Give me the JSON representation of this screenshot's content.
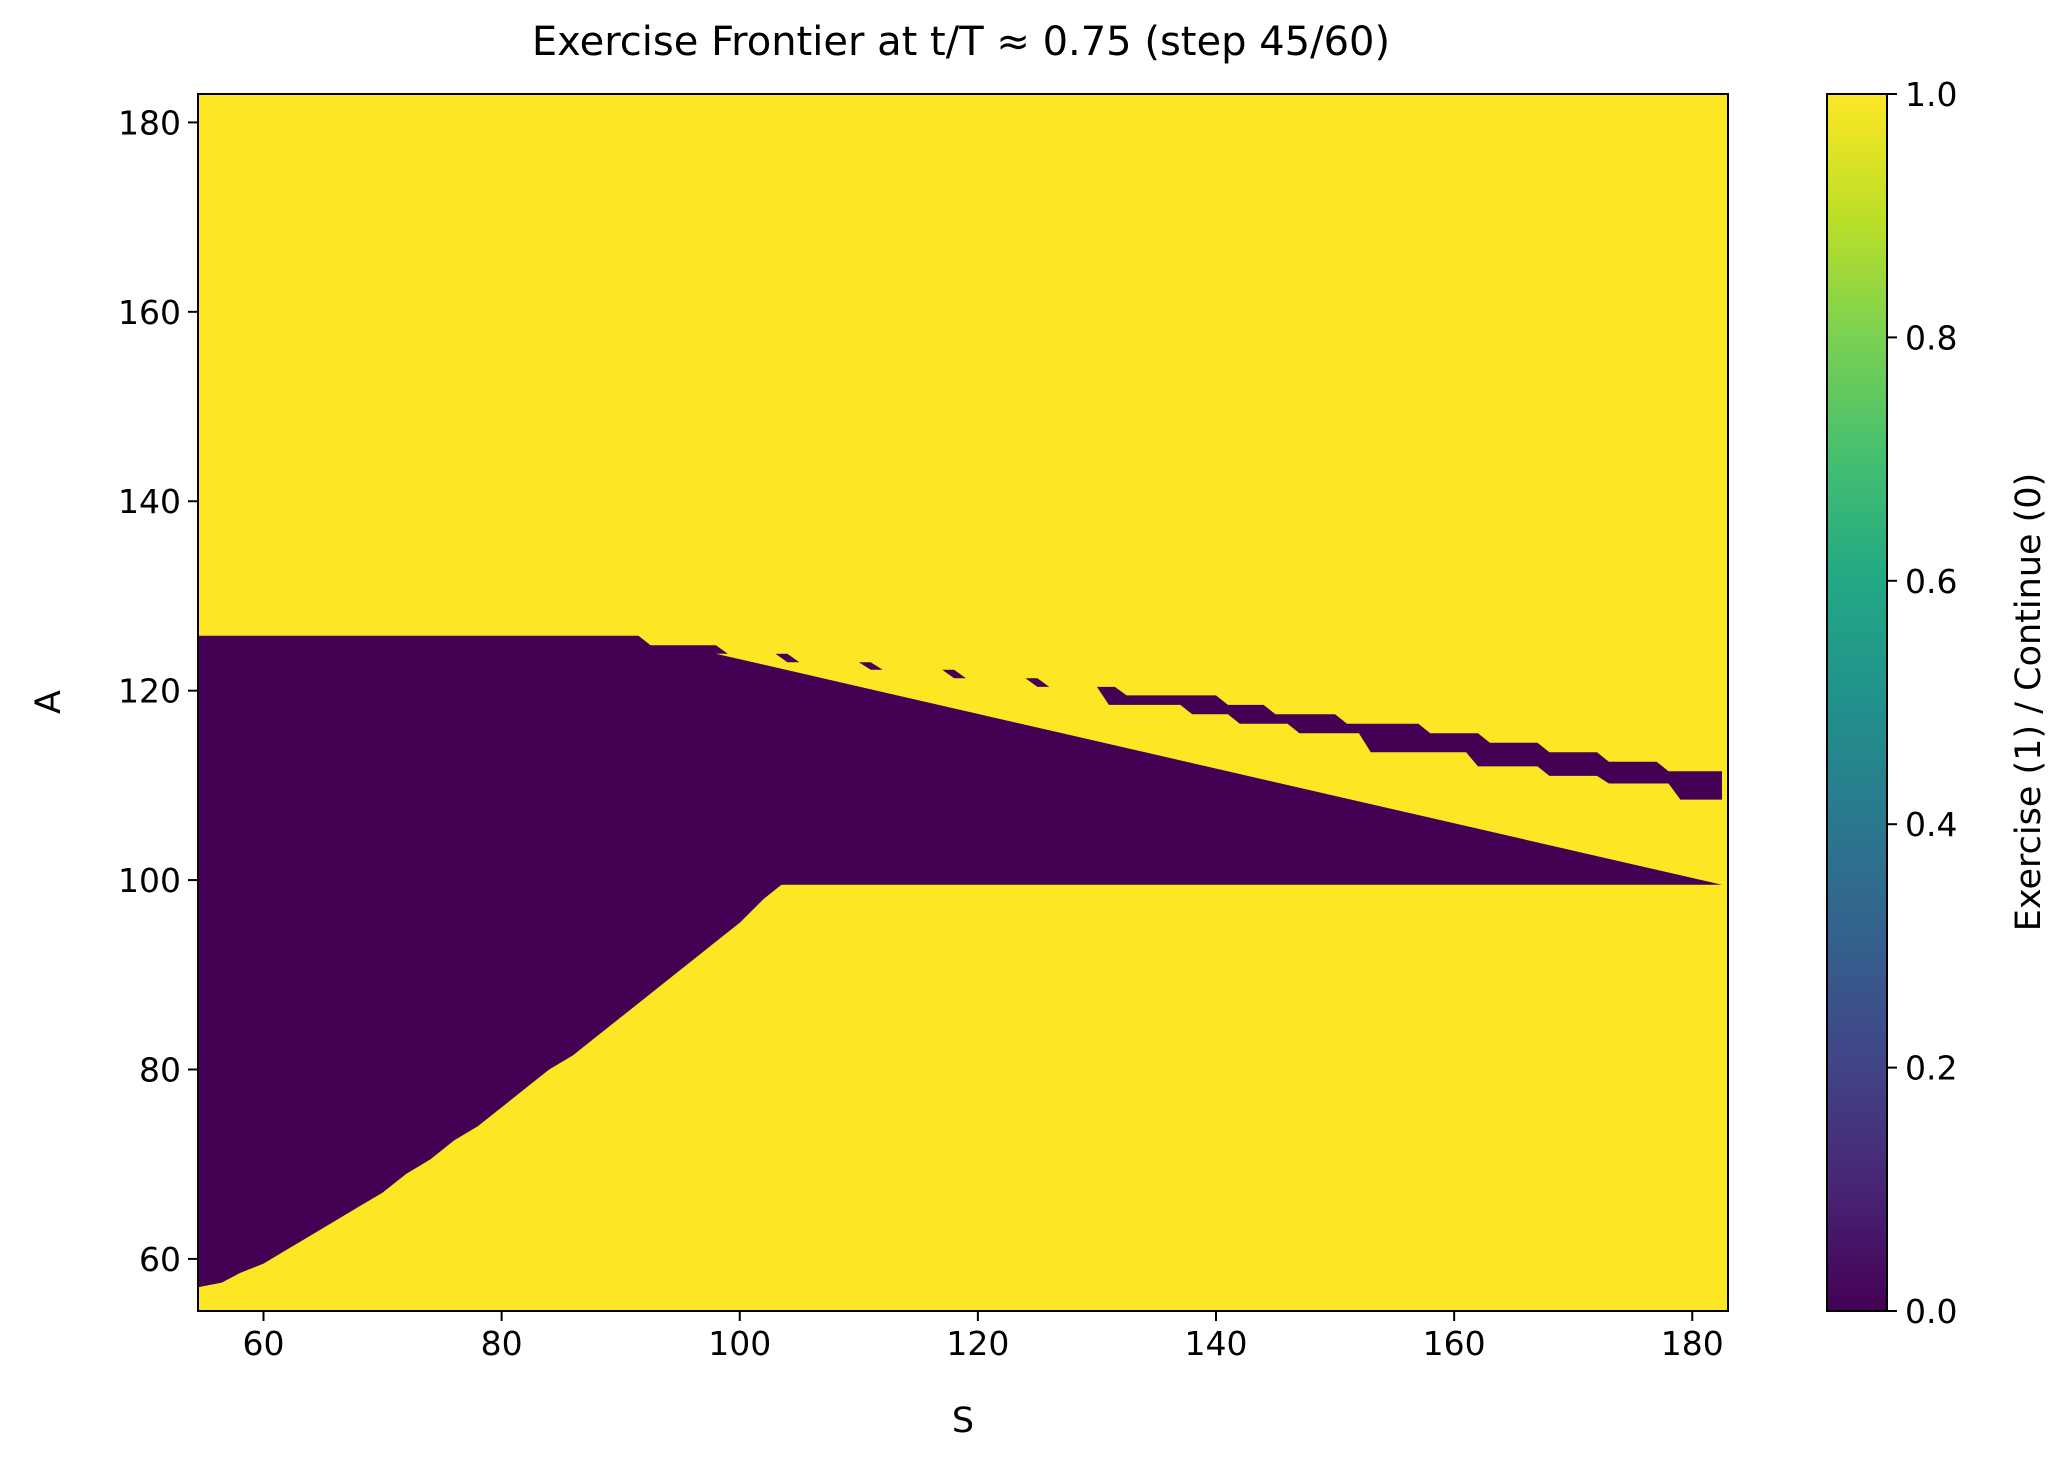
{
  "chart_data": {
    "type": "heatmap",
    "title": "Exercise Frontier at t/T ≈ 0.75 (step 45/60)",
    "xlabel": "S",
    "ylabel": "A",
    "xlim": [
      54.5,
      183
    ],
    "ylim": [
      54.5,
      183
    ],
    "xticks": [
      "60",
      "80",
      "100",
      "120",
      "140",
      "160",
      "180"
    ],
    "yticks": [
      "60",
      "80",
      "100",
      "120",
      "140",
      "160",
      "180"
    ],
    "grid": false,
    "colormap": "viridis",
    "colorbar": {
      "label": "Exercise (1) / Continue (0)",
      "range": [
        0.0,
        1.0
      ],
      "ticks": [
        "0.0",
        "0.2",
        "0.4",
        "0.6",
        "0.8",
        "1.0"
      ]
    },
    "colors": {
      "exercise": "#fde725",
      "continue": "#440154"
    },
    "background_value": 1,
    "region_value": 0,
    "continue_region": {
      "upper_boundary": [
        [
          54.5,
          125.8
        ],
        [
          91.5,
          125.8
        ],
        [
          92.5,
          124.8
        ],
        [
          98,
          124.8
        ],
        [
          99,
          123.9
        ],
        [
          104,
          123.9
        ],
        [
          105,
          123
        ],
        [
          111,
          123
        ],
        [
          112,
          122.2
        ],
        [
          118,
          122.2
        ],
        [
          119,
          121.3
        ],
        [
          125,
          121.3
        ],
        [
          126,
          120.4
        ],
        [
          131.5,
          120.4
        ],
        [
          132.5,
          119.5
        ],
        [
          140,
          119.5
        ],
        [
          141,
          118.5
        ],
        [
          144,
          118.5
        ],
        [
          145,
          117.5
        ],
        [
          150,
          117.5
        ],
        [
          151,
          116.5
        ],
        [
          157,
          116.5
        ],
        [
          158,
          115.5
        ],
        [
          162,
          115.5
        ],
        [
          163,
          114.5
        ],
        [
          167,
          114.5
        ],
        [
          168,
          113.5
        ],
        [
          172,
          113.5
        ],
        [
          173,
          112.5
        ],
        [
          177,
          112.5
        ],
        [
          178,
          111.5
        ],
        [
          182.5,
          111.5
        ],
        [
          182.5,
          108.5
        ],
        [
          179,
          108.5
        ],
        [
          178,
          110.2
        ],
        [
          173,
          110.2
        ],
        [
          172,
          111
        ],
        [
          168,
          111
        ],
        [
          167,
          112
        ],
        [
          162,
          112
        ],
        [
          161,
          113.5
        ],
        [
          153,
          113.5
        ],
        [
          152,
          115.5
        ],
        [
          147,
          115.5
        ],
        [
          146,
          116.5
        ],
        [
          142,
          116.5
        ],
        [
          141,
          117.5
        ],
        [
          138,
          117.5
        ],
        [
          137,
          118.5
        ],
        [
          131,
          118.5
        ],
        [
          130,
          120.4
        ],
        [
          125,
          120.4
        ],
        [
          124,
          121.3
        ],
        [
          118,
          121.3
        ],
        [
          117,
          122.2
        ],
        [
          111,
          122.2
        ],
        [
          110,
          123
        ],
        [
          104,
          123
        ],
        [
          103,
          123.9
        ],
        [
          98,
          123.9
        ]
      ],
      "lower_boundary": [
        [
          54.5,
          57
        ],
        [
          56.5,
          57.5
        ],
        [
          58,
          58.5
        ],
        [
          60,
          59.5
        ],
        [
          62,
          61
        ],
        [
          64,
          62.5
        ],
        [
          66,
          64
        ],
        [
          68,
          65.5
        ],
        [
          70,
          67
        ],
        [
          72,
          69
        ],
        [
          74,
          70.5
        ],
        [
          76,
          72.5
        ],
        [
          78,
          74
        ],
        [
          80,
          76
        ],
        [
          82,
          78
        ],
        [
          84,
          80
        ],
        [
          86,
          81.5
        ],
        [
          88,
          83.5
        ],
        [
          90,
          85.5
        ],
        [
          92,
          87.5
        ],
        [
          94,
          89.5
        ],
        [
          96,
          91.5
        ],
        [
          98,
          93.5
        ],
        [
          100,
          95.5
        ],
        [
          102,
          98
        ],
        [
          103.5,
          99.5
        ],
        [
          182.5,
          99.5
        ]
      ]
    }
  }
}
